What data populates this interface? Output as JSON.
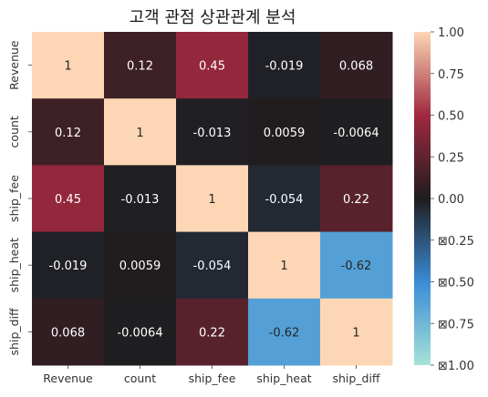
{
  "chart_data": {
    "type": "heatmap",
    "title": "고객 관점 상관관계 분석",
    "rows": [
      "Revenue",
      "count",
      "ship_fee",
      "ship_heat",
      "ship_diff"
    ],
    "cols": [
      "Revenue",
      "count",
      "ship_fee",
      "ship_heat",
      "ship_diff"
    ],
    "values": [
      [
        1,
        0.12,
        0.45,
        -0.019,
        0.068
      ],
      [
        0.12,
        1,
        -0.013,
        0.0059,
        -0.0064
      ],
      [
        0.45,
        -0.013,
        1,
        -0.054,
        0.22
      ],
      [
        -0.019,
        0.0059,
        -0.054,
        1,
        -0.62
      ],
      [
        0.068,
        -0.0064,
        0.22,
        -0.62,
        1
      ]
    ],
    "cell_labels": [
      [
        "1",
        "0.12",
        "0.45",
        "-0.019",
        "0.068"
      ],
      [
        "0.12",
        "1",
        "-0.013",
        "0.0059",
        "-0.0064"
      ],
      [
        "0.45",
        "-0.013",
        "1",
        "-0.054",
        "0.22"
      ],
      [
        "-0.019",
        "0.0059",
        "-0.054",
        "1",
        "-0.62"
      ],
      [
        "0.068",
        "-0.0064",
        "0.22",
        "-0.62",
        "1"
      ]
    ],
    "vmin": -1,
    "vmax": 1,
    "colormap": "icefire",
    "colorbar": {
      "ticks": [
        1.0,
        0.75,
        0.5,
        0.25,
        0.0,
        -0.25,
        -0.5,
        -0.75,
        -1.0
      ],
      "tick_labels": [
        "1.00",
        "0.75",
        "0.50",
        "0.25",
        "0.00",
        "⊠0.25",
        "⊠0.50",
        "⊠0.75",
        "⊠1.00"
      ]
    },
    "colors": {
      "neg_end": "#a6e3d8",
      "neg_mid": "#3a8bd6",
      "center": "#1f1d1f",
      "pos_mid": "#a0283f",
      "pos_end": "#fdd7b5"
    }
  }
}
